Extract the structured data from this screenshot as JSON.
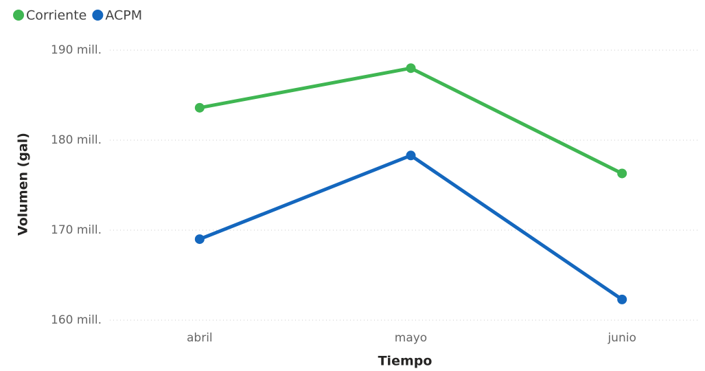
{
  "chart_data": {
    "type": "line",
    "x_label": "Tiempo",
    "y_label": "Volumen (gal)",
    "categories": [
      "abril",
      "mayo",
      "junio"
    ],
    "series": [
      {
        "name": "Corriente",
        "color": "#3fb652",
        "values": [
          183600000,
          188000000,
          176300000
        ]
      },
      {
        "name": "ACPM",
        "color": "#1467be",
        "values": [
          169000000,
          178300000,
          162300000
        ]
      }
    ],
    "ylim": [
      160000000,
      190000000
    ],
    "yticks": [
      {
        "value": 160000000,
        "label": "160 mill."
      },
      {
        "value": 170000000,
        "label": "170 mill."
      },
      {
        "value": 180000000,
        "label": "180 mill."
      },
      {
        "value": 190000000,
        "label": "190 mill."
      }
    ],
    "grid": true,
    "legend": "top-left"
  }
}
